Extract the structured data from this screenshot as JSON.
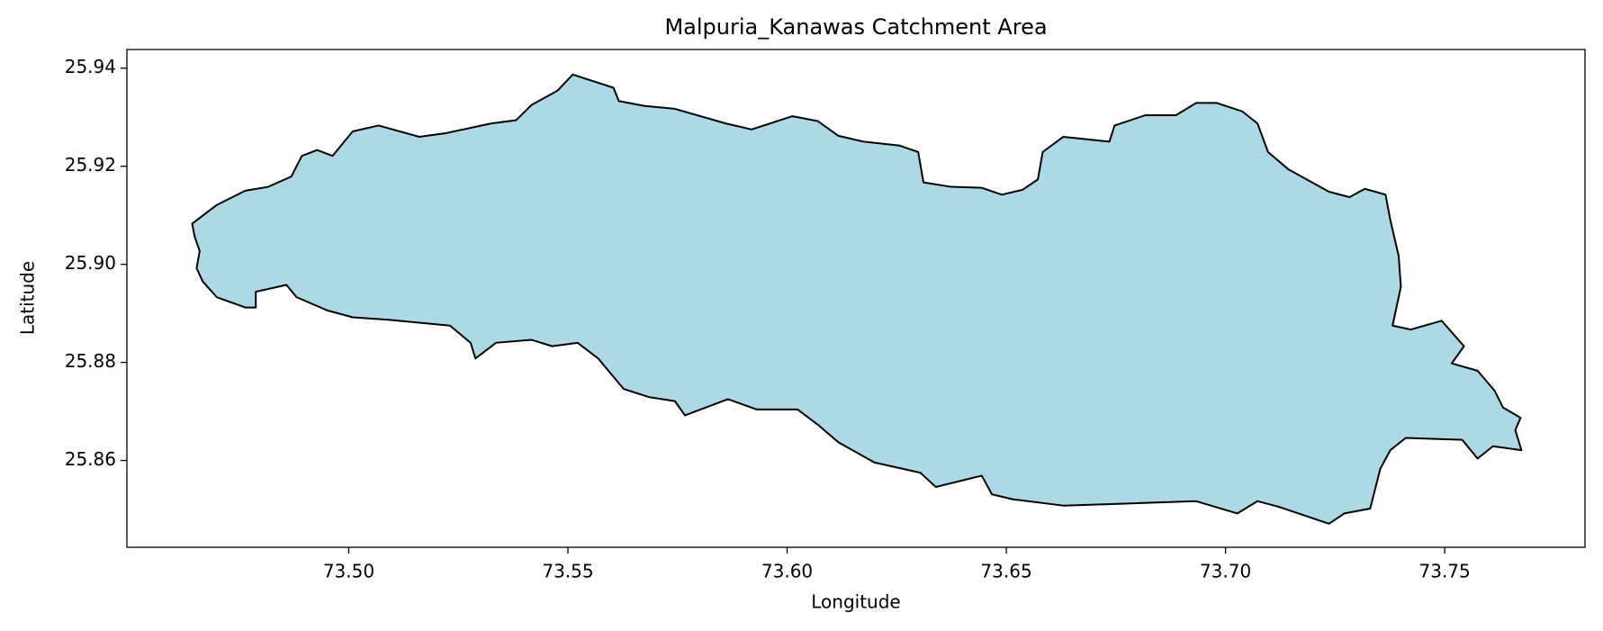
{
  "chart_data": {
    "type": "polygon",
    "title": "Malpuria_Kanawas Catchment Area",
    "x_label": "Longitude",
    "y_label": "Latitude",
    "color": "#add8e6",
    "edgecolor": "#000000",
    "xlim": [
      73.4494,
      73.782
    ],
    "ylim": [
      25.8423,
      25.9438
    ],
    "xticks": [
      {
        "value": 73.5,
        "label": "73.50"
      },
      73.55,
      {
        "value": 73.6,
        "label": "73.60"
      },
      73.65,
      {
        "value": 73.7,
        "label": "73.70"
      },
      73.75
    ],
    "yticks": [
      25.86,
      25.88,
      {
        "value": 25.9,
        "label": "25.90"
      },
      25.92,
      25.94
    ],
    "x": [
      73.4643,
      73.4699,
      73.4764,
      73.4816,
      73.4869,
      73.4893,
      73.4928,
      73.4963,
      73.5009,
      73.5068,
      73.5161,
      73.5219,
      73.5324,
      73.5382,
      73.5417,
      73.5476,
      73.5511,
      73.5604,
      73.5616,
      73.5674,
      73.5744,
      73.5861,
      73.5919,
      73.6012,
      73.607,
      73.6117,
      73.6175,
      73.6257,
      73.6299,
      73.6311,
      73.6374,
      73.6444,
      73.649,
      73.6537,
      73.6572,
      73.6583,
      73.663,
      73.6735,
      73.6747,
      73.6817,
      73.6887,
      73.6933,
      73.698,
      73.7038,
      73.7073,
      73.7097,
      73.7143,
      73.7236,
      73.7283,
      73.7318,
      73.7365,
      73.7376,
      73.7395,
      73.74,
      73.7381,
      73.7423,
      73.7493,
      73.7544,
      73.7516,
      73.7575,
      73.7614,
      73.7633,
      73.7673,
      73.7661,
      73.7675,
      73.761,
      73.7575,
      73.754,
      73.7411,
      73.7376,
      73.7353,
      73.733,
      73.7271,
      73.7236,
      73.712,
      73.7073,
      73.7027,
      73.6933,
      73.677,
      73.663,
      73.6514,
      73.6467,
      73.6444,
      73.6339,
      73.6304,
      73.6199,
      73.6117,
      73.607,
      73.6024,
      73.5931,
      73.5865,
      73.5767,
      73.5744,
      73.5686,
      73.5627,
      73.5569,
      73.5522,
      73.5464,
      73.5417,
      73.5336,
      73.5289,
      73.5278,
      73.5231,
      73.5091,
      73.5009,
      73.4951,
      73.4881,
      73.4858,
      73.4788,
      73.4788,
      73.4764,
      73.4699,
      73.4667,
      73.4653,
      73.466,
      73.4648
    ],
    "values": [
      25.9083,
      25.9121,
      25.915,
      25.9158,
      25.9179,
      25.9221,
      25.9233,
      25.9221,
      25.9271,
      25.9283,
      25.926,
      25.9267,
      25.9287,
      25.9294,
      25.9325,
      25.9354,
      25.9387,
      25.936,
      25.9333,
      25.9323,
      25.9317,
      25.9287,
      25.9275,
      25.9302,
      25.9292,
      25.9262,
      25.925,
      25.9242,
      25.9229,
      25.9167,
      25.9158,
      25.9156,
      25.9142,
      25.9152,
      25.9173,
      25.9229,
      25.926,
      25.925,
      25.9283,
      25.9304,
      25.9304,
      25.9329,
      25.9329,
      25.9312,
      25.9287,
      25.9229,
      25.9194,
      25.9148,
      25.9137,
      25.9154,
      25.9142,
      25.909,
      25.9017,
      25.8954,
      25.8875,
      25.8867,
      25.8885,
      25.8833,
      25.8798,
      25.8783,
      25.8742,
      25.8708,
      25.8687,
      25.8662,
      25.8621,
      25.8629,
      25.8604,
      25.8642,
      25.8646,
      25.8621,
      25.8583,
      25.8502,
      25.8492,
      25.8471,
      25.8506,
      25.8517,
      25.8492,
      25.8517,
      25.8512,
      25.8508,
      25.8521,
      25.8531,
      25.8569,
      25.8546,
      25.8575,
      25.8596,
      25.8637,
      25.8673,
      25.8704,
      25.8704,
      25.8725,
      25.8692,
      25.8721,
      25.8729,
      25.8746,
      25.8808,
      25.884,
      25.8833,
      25.8846,
      25.884,
      25.8808,
      25.884,
      25.8875,
      25.8887,
      25.8892,
      25.8906,
      25.8933,
      25.8958,
      25.8944,
      25.8912,
      25.8912,
      25.8933,
      25.8965,
      25.8992,
      25.9027,
      25.9058
    ]
  }
}
